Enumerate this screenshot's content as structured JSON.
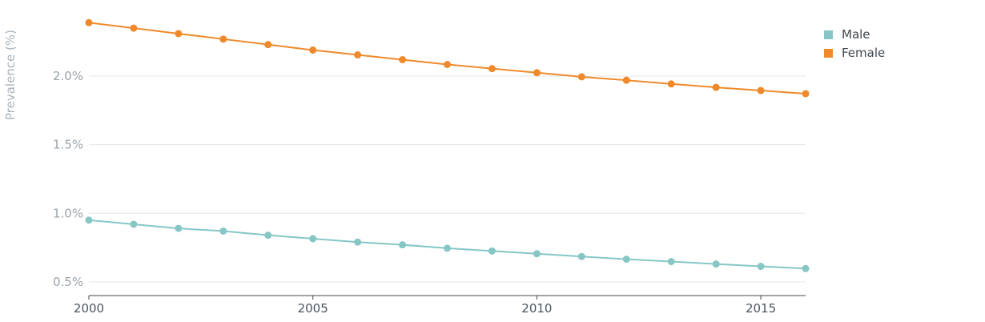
{
  "chart_data": {
    "type": "line",
    "title": "",
    "xlabel": "",
    "ylabel": "Prevalence (%)",
    "x": [
      2000,
      2001,
      2002,
      2003,
      2004,
      2005,
      2006,
      2007,
      2008,
      2009,
      2010,
      2011,
      2012,
      2013,
      2014,
      2015,
      2016
    ],
    "xlim": [
      2000,
      2016
    ],
    "ylim": [
      0.4,
      2.45
    ],
    "x_ticks": [
      2000,
      2005,
      2010,
      2015
    ],
    "x_tick_labels": [
      "2000",
      "2005",
      "2010",
      "2015"
    ],
    "y_ticks": [
      0.5,
      1.0,
      1.5,
      2.0
    ],
    "y_tick_labels": [
      "0.5%",
      "1.0%",
      "1.5%",
      "2.0%"
    ],
    "grid": true,
    "legend_position": "top-right",
    "series": [
      {
        "name": "Male",
        "color": "#86c7c6",
        "values": [
          0.95,
          0.92,
          0.89,
          0.87,
          0.84,
          0.815,
          0.79,
          0.77,
          0.745,
          0.725,
          0.705,
          0.685,
          0.665,
          0.648,
          0.63,
          0.613,
          0.597
        ]
      },
      {
        "name": "Female",
        "color": "#f0892a",
        "values": [
          2.39,
          2.35,
          2.31,
          2.27,
          2.23,
          2.19,
          2.155,
          2.12,
          2.085,
          2.055,
          2.025,
          1.995,
          1.97,
          1.943,
          1.918,
          1.895,
          1.872
        ]
      }
    ]
  }
}
